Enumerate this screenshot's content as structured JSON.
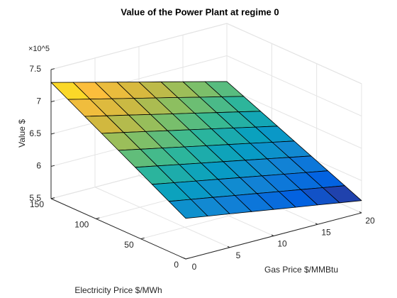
{
  "chart_data": {
    "type": "surface",
    "title": "Value of the Power Plant at regime 0",
    "xlabel": "Gas Price $/MMBtu",
    "ylabel": "Electricity Price $/MWh",
    "zlabel": "Value $",
    "zexponent": "×10^5",
    "colormap": "parula",
    "grid": true,
    "x": [
      0,
      2.5,
      5,
      7.5,
      10,
      12.5,
      15,
      17.5,
      20
    ],
    "y": [
      0,
      18.75,
      37.5,
      56.25,
      75,
      93.75,
      112.5,
      131.25,
      150
    ],
    "z": [
      [
        613000,
        607500,
        602000,
        596500,
        591000,
        585500,
        580000,
        574500,
        569000
      ],
      [
        627600,
        621700,
        615800,
        609900,
        604000,
        598100,
        592200,
        586300,
        580400
      ],
      [
        642300,
        635900,
        629600,
        623300,
        617000,
        610700,
        604400,
        598100,
        591800
      ],
      [
        656900,
        650200,
        643400,
        636700,
        630000,
        623300,
        616600,
        609800,
        603100
      ],
      [
        671500,
        664400,
        657300,
        650100,
        643000,
        635900,
        628800,
        621600,
        614500
      ],
      [
        686100,
        678600,
        671100,
        663500,
        656000,
        648500,
        640900,
        633400,
        625900
      ],
      [
        700800,
        692800,
        684900,
        676900,
        669000,
        661100,
        653100,
        645200,
        637300
      ],
      [
        715400,
        707000,
        698700,
        690300,
        682000,
        673700,
        665300,
        657000,
        648600
      ],
      [
        730000,
        721300,
        712500,
        703800,
        695000,
        686300,
        677500,
        668800,
        660000
      ]
    ],
    "xlim": [
      0,
      20
    ],
    "xticks": [
      0,
      5,
      10,
      15,
      20
    ],
    "ylim": [
      0,
      150
    ],
    "yticks": [
      0,
      50,
      100,
      150
    ],
    "zlim": [
      550000,
      750000
    ],
    "zticks": [
      {
        "value": 550000,
        "label": "5.5"
      },
      {
        "value": 600000,
        "label": "6"
      },
      {
        "value": 650000,
        "label": "6.5"
      },
      {
        "value": 700000,
        "label": "7"
      },
      {
        "value": 750000,
        "label": "7.5"
      }
    ]
  }
}
